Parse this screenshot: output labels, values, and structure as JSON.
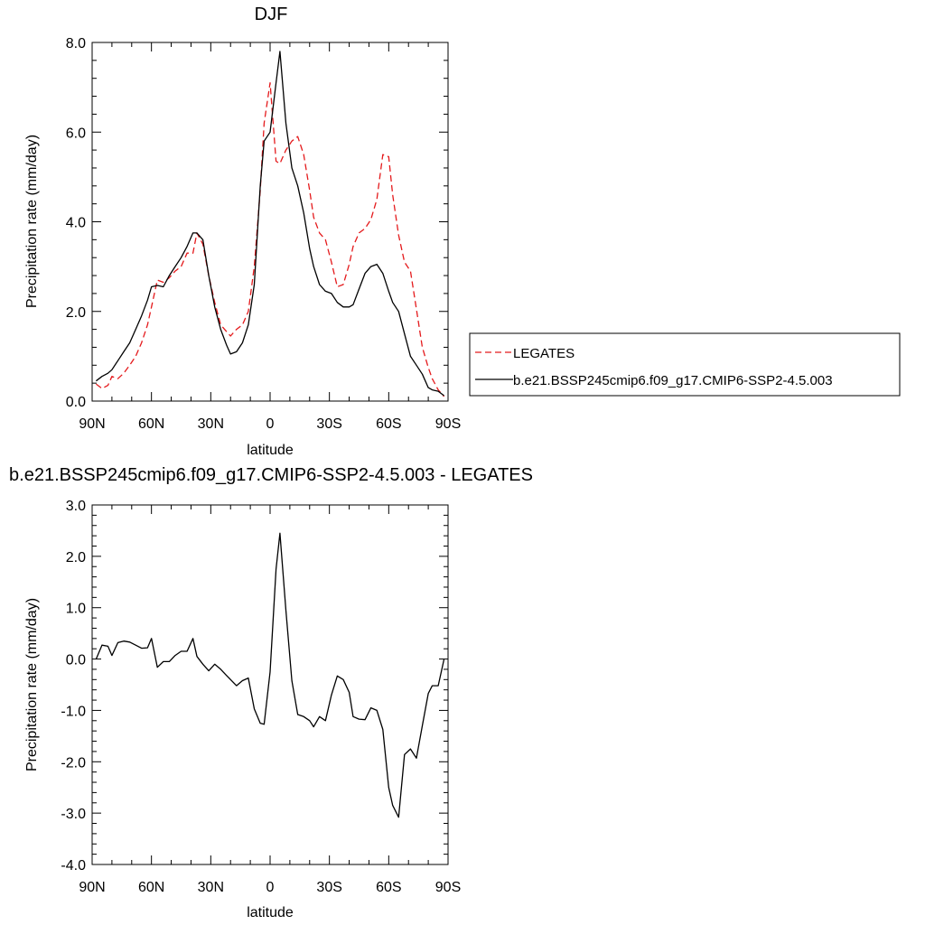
{
  "chart_data": [
    {
      "type": "line",
      "title": "DJF",
      "xlabel": "latitude",
      "ylabel": "Precipitation rate (mm/day)",
      "xlim": [
        90,
        -90
      ],
      "ylim": [
        0,
        8
      ],
      "x_tick_values": [
        90,
        60,
        30,
        0,
        -30,
        -60,
        -90
      ],
      "x_tick_labels": [
        "90N",
        "60N",
        "30N",
        "0",
        "30S",
        "60S",
        "90S"
      ],
      "y_tick_values": [
        0,
        2,
        4,
        6,
        8
      ],
      "y_tick_labels": [
        "0.0",
        "2.0",
        "4.0",
        "6.0",
        "8.0"
      ],
      "legend": {
        "placement": "right",
        "entries": [
          {
            "label": "LEGATES",
            "color": "#e41a1c",
            "dash": "dashed"
          },
          {
            "label": "b.e21.BSSP245cmip6.f09_g17.CMIP6-SSP2-4.5.003",
            "color": "#000000",
            "dash": "solid"
          }
        ]
      },
      "series": [
        {
          "name": "LEGATES",
          "color": "#e41a1c",
          "dash": "dashed",
          "x": [
            88,
            85,
            82,
            80,
            77,
            74,
            71,
            68,
            65,
            62,
            60,
            57,
            54,
            51,
            48,
            45,
            42,
            39,
            37,
            34,
            31,
            28,
            25,
            22,
            20,
            17,
            14,
            11,
            8,
            5,
            3,
            0,
            -3,
            -5,
            -8,
            -11,
            -14,
            -17,
            -20,
            -22,
            -25,
            -28,
            -31,
            -34,
            -37,
            -40,
            -42,
            -45,
            -48,
            -51,
            -54,
            -57,
            -60,
            -62,
            -65,
            -68,
            -71,
            -74,
            -77,
            -80,
            -82,
            -85,
            -88
          ],
          "y": [
            0.38,
            0.28,
            0.35,
            0.55,
            0.5,
            0.62,
            0.8,
            1.0,
            1.3,
            1.7,
            2.1,
            2.7,
            2.65,
            2.75,
            2.9,
            3.0,
            3.3,
            3.3,
            3.75,
            3.5,
            2.8,
            2.2,
            1.7,
            1.55,
            1.45,
            1.6,
            1.7,
            2.0,
            3.0,
            4.7,
            6.2,
            7.1,
            5.35,
            5.3,
            5.6,
            5.8,
            5.9,
            5.5,
            4.7,
            4.1,
            3.75,
            3.6,
            3.1,
            2.55,
            2.6,
            3.05,
            3.45,
            3.75,
            3.85,
            4.05,
            4.5,
            5.5,
            5.45,
            4.6,
            3.7,
            3.1,
            2.9,
            2.05,
            1.2,
            0.75,
            0.5,
            0.25,
            0.1
          ]
        },
        {
          "name": "b.e21.BSSP245cmip6.f09_g17.CMIP6-SSP2-4.5.003",
          "color": "#000000",
          "dash": "solid",
          "x": [
            88,
            85,
            82,
            80,
            77,
            74,
            71,
            68,
            65,
            62,
            60,
            57,
            54,
            51,
            48,
            45,
            42,
            39,
            37,
            34,
            31,
            28,
            25,
            22,
            20,
            17,
            14,
            11,
            8,
            5,
            3,
            0,
            -3,
            -5,
            -8,
            -11,
            -14,
            -17,
            -20,
            -22,
            -25,
            -28,
            -31,
            -34,
            -37,
            -40,
            -42,
            -45,
            -48,
            -51,
            -54,
            -57,
            -60,
            -62,
            -65,
            -68,
            -71,
            -74,
            -77,
            -80,
            -82,
            -85,
            -88
          ],
          "y": [
            0.45,
            0.55,
            0.62,
            0.7,
            0.9,
            1.1,
            1.3,
            1.6,
            1.9,
            2.25,
            2.55,
            2.58,
            2.55,
            2.8,
            3.0,
            3.2,
            3.45,
            3.75,
            3.75,
            3.6,
            2.8,
            2.1,
            1.6,
            1.25,
            1.05,
            1.1,
            1.3,
            1.7,
            2.6,
            4.8,
            5.8,
            6.0,
            7.1,
            7.8,
            6.2,
            5.2,
            4.8,
            4.2,
            3.4,
            3.0,
            2.6,
            2.45,
            2.4,
            2.2,
            2.1,
            2.1,
            2.15,
            2.5,
            2.85,
            3.0,
            3.05,
            2.85,
            2.45,
            2.2,
            2.0,
            1.5,
            1.0,
            0.8,
            0.6,
            0.3,
            0.25,
            0.22,
            0.12
          ]
        }
      ]
    },
    {
      "type": "line",
      "title": "b.e21.BSSP245cmip6.f09_g17.CMIP6-SSP2-4.5.003 - LEGATES",
      "xlabel": "latitude",
      "ylabel": "Precipitation rate (mm/day)",
      "xlim": [
        90,
        -90
      ],
      "ylim": [
        -4,
        3
      ],
      "x_tick_values": [
        90,
        60,
        30,
        0,
        -30,
        -60,
        -90
      ],
      "x_tick_labels": [
        "90N",
        "60N",
        "30N",
        "0",
        "30S",
        "60S",
        "90S"
      ],
      "y_tick_values": [
        -4,
        -3,
        -2,
        -1,
        0,
        1,
        2,
        3
      ],
      "y_tick_labels": [
        "-4.0",
        "-3.0",
        "-2.0",
        "-1.0",
        "0.0",
        "1.0",
        "2.0",
        "3.0"
      ],
      "series": [
        {
          "color": "#000000",
          "dash": "solid",
          "x": [
            88,
            85,
            82,
            80,
            77,
            74,
            71,
            68,
            65,
            62,
            60,
            57,
            54,
            51,
            48,
            45,
            42,
            39,
            37,
            34,
            31,
            28,
            25,
            22,
            20,
            17,
            14,
            11,
            8,
            5,
            3,
            0,
            -3,
            -5,
            -8,
            -11,
            -14,
            -17,
            -20,
            -22,
            -25,
            -28,
            -31,
            -34,
            -37,
            -40,
            -42,
            -45,
            -48,
            -51,
            -54,
            -57,
            -60,
            -62,
            -65,
            -68,
            -71,
            -74,
            -77,
            -80,
            -82,
            -85,
            -88
          ],
          "y": [
            0.0,
            0.27,
            0.25,
            0.07,
            0.32,
            0.35,
            0.33,
            0.27,
            0.21,
            0.22,
            0.4,
            -0.16,
            -0.05,
            -0.05,
            0.07,
            0.15,
            0.15,
            0.4,
            0.05,
            -0.1,
            -0.23,
            -0.1,
            -0.2,
            -0.32,
            -0.4,
            -0.52,
            -0.42,
            -0.37,
            -0.97,
            -1.25,
            -1.27,
            -0.25,
            1.75,
            2.45,
            0.95,
            -0.42,
            -1.08,
            -1.12,
            -1.2,
            -1.32,
            -1.12,
            -1.2,
            -0.7,
            -0.33,
            -0.4,
            -0.65,
            -1.12,
            -1.17,
            -1.18,
            -0.95,
            -1.0,
            -1.37,
            -2.5,
            -2.85,
            -3.08,
            -1.86,
            -1.75,
            -1.93,
            -1.3,
            -0.67,
            -0.52,
            -0.52,
            0.0
          ]
        }
      ]
    }
  ]
}
